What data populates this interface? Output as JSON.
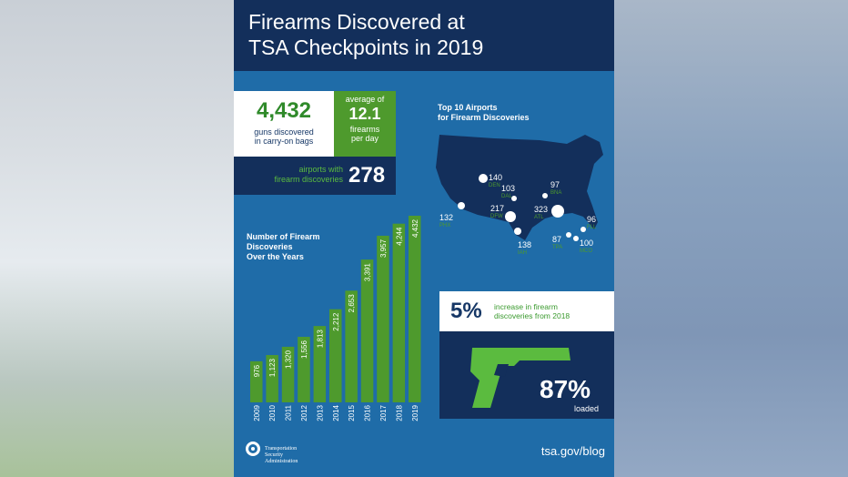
{
  "title_lines": [
    "Firearms Discovered at",
    "TSA Checkpoints in 2019"
  ],
  "stats": {
    "guns_total": "4,432",
    "guns_desc_lines": [
      "guns discovered",
      "in carry-on bags"
    ],
    "average_label": "average of",
    "average_value": "12.1",
    "average_unit_lines": [
      "firearms",
      "per day"
    ],
    "airports_label_lines": [
      "airports with",
      "firearm discoveries"
    ],
    "airports_value": "278"
  },
  "top10": {
    "title_lines": [
      "Top 10 Airports",
      "for Firearm Discoveries"
    ],
    "airports": [
      {
        "count": "140",
        "code": "DEN"
      },
      {
        "count": "103",
        "code": "DAL"
      },
      {
        "count": "97",
        "code": "BNA"
      },
      {
        "count": "132",
        "code": "PHX"
      },
      {
        "count": "217",
        "code": "DFW"
      },
      {
        "count": "323",
        "code": "ATL"
      },
      {
        "count": "96",
        "code": "FLL"
      },
      {
        "count": "138",
        "code": "IAH"
      },
      {
        "count": "87",
        "code": "TPA"
      },
      {
        "count": "100",
        "code": "MCO"
      }
    ]
  },
  "increase": {
    "value": "5%",
    "text_lines": [
      "increase in firearm",
      "discoveries from 2018"
    ]
  },
  "loaded": {
    "value": "87%",
    "label": "loaded"
  },
  "footer": {
    "agency_lines": [
      "Transportation",
      "Security",
      "Administration"
    ],
    "site": "tsa.gov/blog"
  },
  "colors": {
    "navy": "#132f5b",
    "blue": "#1f6ca8",
    "green": "#4e9a2d",
    "light_green": "#5bbb3f"
  },
  "chart_data": {
    "type": "bar",
    "title_lines": [
      "Number of Firearm",
      "Discoveries",
      "Over the Years"
    ],
    "categories": [
      "2009",
      "2010",
      "2011",
      "2012",
      "2013",
      "2014",
      "2015",
      "2016",
      "2017",
      "2018",
      "2019"
    ],
    "values": [
      976,
      1123,
      1320,
      1556,
      1813,
      2212,
      2653,
      3391,
      3957,
      4244,
      4432
    ],
    "value_labels": [
      "976",
      "1,123",
      "1,320",
      "1,556",
      "1,813",
      "2,212",
      "2,653",
      "3,391",
      "3,957",
      "4,244",
      "4,432"
    ],
    "ylim": [
      0,
      4432
    ],
    "color": "#4e9a2d",
    "grid": false,
    "legend": "none"
  }
}
